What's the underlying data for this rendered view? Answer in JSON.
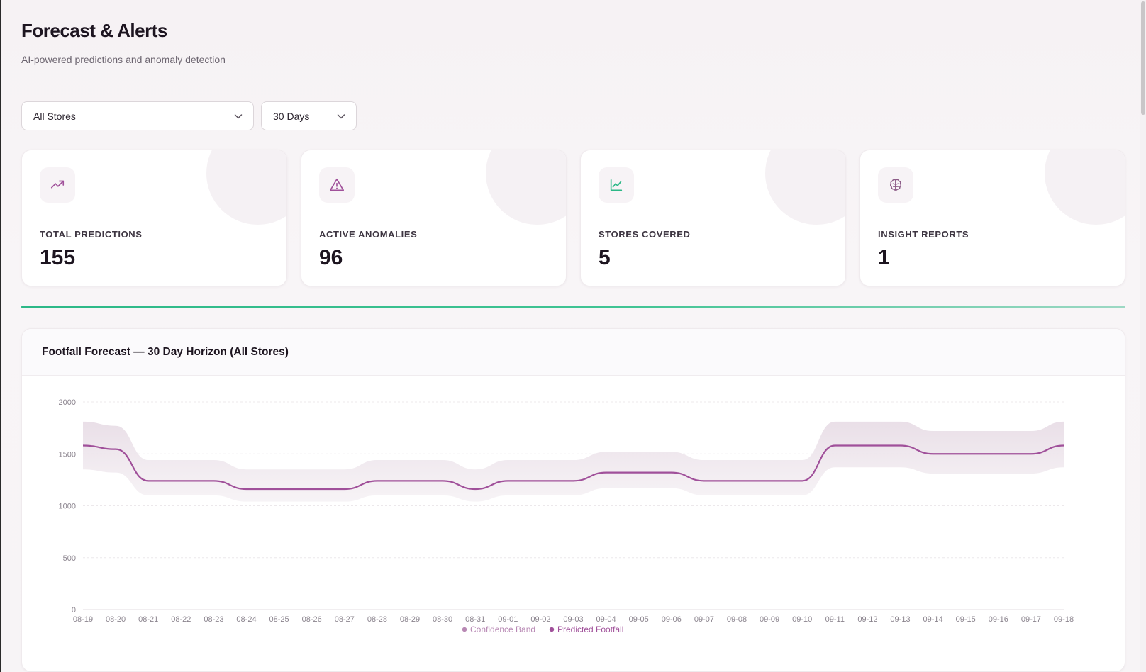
{
  "header": {
    "title": "Forecast & Alerts",
    "subtitle": "AI-powered predictions and anomaly detection"
  },
  "filters": {
    "store": {
      "selected": "All Stores"
    },
    "range": {
      "selected": "30 Days"
    }
  },
  "stats": [
    {
      "label": "TOTAL PREDICTIONS",
      "value": "155",
      "icon": "trending-up-icon",
      "icon_color": "#a0509a"
    },
    {
      "label": "ACTIVE ANOMALIES",
      "value": "96",
      "icon": "alert-triangle-icon",
      "icon_color": "#a0509a"
    },
    {
      "label": "STORES COVERED",
      "value": "5",
      "icon": "line-chart-icon",
      "icon_color": "#2cb887"
    },
    {
      "label": "INSIGHT REPORTS",
      "value": "1",
      "icon": "brain-icon",
      "icon_color": "#8b5a86"
    }
  ],
  "colors": {
    "accent": "#a0509a",
    "success": "#2cb887",
    "band": "#ece4ea"
  },
  "chart": {
    "title": "Footfall Forecast — 30 Day Horizon (All Stores)"
  },
  "chart_data": {
    "type": "area",
    "title": "Footfall Forecast — 30 Day Horizon (All Stores)",
    "xlabel": "",
    "ylabel": "",
    "ylim": [
      0,
      2000
    ],
    "yticks": [
      0,
      500,
      1000,
      1500,
      2000
    ],
    "grid": true,
    "legend_position": "bottom",
    "x": [
      "08-19",
      "08-20",
      "08-21",
      "08-22",
      "08-23",
      "08-24",
      "08-25",
      "08-26",
      "08-27",
      "08-28",
      "08-29",
      "08-30",
      "08-31",
      "09-01",
      "09-02",
      "09-03",
      "09-04",
      "09-05",
      "09-06",
      "09-07",
      "09-08",
      "09-09",
      "09-10",
      "09-11",
      "09-12",
      "09-13",
      "09-14",
      "09-15",
      "09-16",
      "09-17",
      "09-18"
    ],
    "series": [
      {
        "name": "Confidence Band",
        "kind": "band",
        "color": "#b888b4",
        "lower": [
          1350,
          1320,
          1100,
          1100,
          1100,
          1040,
          1040,
          1040,
          1040,
          1100,
          1100,
          1100,
          1040,
          1100,
          1100,
          1100,
          1170,
          1170,
          1170,
          1100,
          1100,
          1100,
          1100,
          1370,
          1370,
          1370,
          1310,
          1310,
          1310,
          1310,
          1370
        ],
        "upper": [
          1810,
          1770,
          1440,
          1440,
          1440,
          1350,
          1350,
          1350,
          1350,
          1440,
          1440,
          1440,
          1350,
          1440,
          1440,
          1440,
          1520,
          1520,
          1520,
          1440,
          1440,
          1440,
          1440,
          1810,
          1810,
          1810,
          1720,
          1720,
          1720,
          1720,
          1810
        ]
      },
      {
        "name": "Predicted Footfall",
        "kind": "line",
        "color": "#a0509a",
        "values": [
          1580,
          1545,
          1240,
          1240,
          1240,
          1160,
          1160,
          1160,
          1160,
          1240,
          1240,
          1240,
          1160,
          1240,
          1240,
          1240,
          1320,
          1320,
          1320,
          1240,
          1240,
          1240,
          1240,
          1580,
          1580,
          1580,
          1500,
          1500,
          1500,
          1500,
          1580
        ]
      }
    ]
  }
}
